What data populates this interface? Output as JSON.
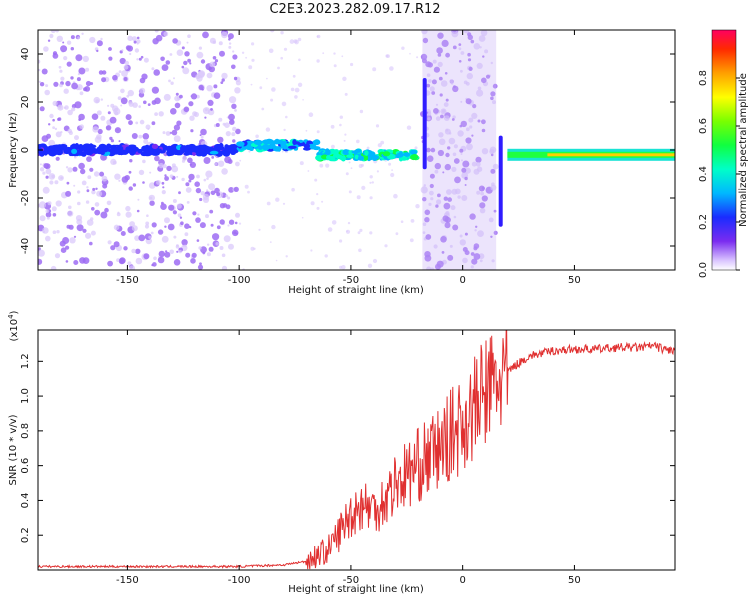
{
  "title": "C2E3.2023.282.09.17.R12",
  "colors": {
    "snr_line": "#e03030",
    "axis": "#000000",
    "signal_purple": "#7a2cf0",
    "noise_purple": "#b58cf5"
  },
  "chart_data": [
    {
      "type": "heatmap",
      "xlabel": "Height of straight line (km)",
      "ylabel": "Frequency (Hz)",
      "xlim": [
        -190,
        95
      ],
      "ylim": [
        -50,
        50
      ],
      "xticks": [
        -150,
        -100,
        -50,
        0,
        50
      ],
      "yticks": [
        -40,
        -20,
        0,
        20,
        40
      ],
      "colorbar": {
        "label": "Normalized spectral amplitude",
        "range": [
          0,
          1
        ],
        "ticks": [
          "0.0",
          "0.2",
          "0.4",
          "0.6",
          "0.8"
        ],
        "colormap": "rainbow"
      },
      "features": [
        {
          "x_range": [
            -190,
            -100
          ],
          "signal_freq": 0,
          "amplitude": 0.25,
          "noise": "dense"
        },
        {
          "x_range": [
            -100,
            -65
          ],
          "signal_freq": 2,
          "amplitude": 0.4,
          "noise": "sparse"
        },
        {
          "x_range": [
            -65,
            -20
          ],
          "signal_freq": -2,
          "amplitude": 0.55,
          "noise": "sparse"
        },
        {
          "x_range": [
            -18,
            15
          ],
          "signal_freq": null,
          "amplitude": 0.15,
          "noise": "dense"
        },
        {
          "x_range": [
            20,
            95
          ],
          "signal_freq": -2,
          "amplitude": 0.75,
          "noise": "none"
        }
      ]
    },
    {
      "type": "line",
      "xlabel": "Height of straight line (km)",
      "ylabel": "SNR (10 * v/v)",
      "y_multiplier": "(x10",
      "y_multiplier_exp": "4",
      "y_multiplier_close": ")",
      "xlim": [
        -190,
        95
      ],
      "ylim": [
        0,
        1.38
      ],
      "xticks": [
        -150,
        -100,
        -50,
        0,
        50
      ],
      "yticks": [
        0.2,
        0.4,
        0.6,
        0.8,
        1.0,
        1.2
      ],
      "ytick_labels": [
        "0.2",
        "0.4",
        "0.6",
        "0.8",
        "1.0",
        "1.2"
      ],
      "series": [
        {
          "x": [
            -190,
            -150,
            -100,
            -80,
            -70,
            -60,
            -55,
            -50,
            -45,
            -40,
            -35,
            -30,
            -25,
            -20,
            -15,
            -10,
            -5,
            0,
            5,
            10,
            15,
            20,
            25,
            30,
            40,
            50,
            60,
            70,
            80,
            85,
            90,
            95
          ],
          "y": [
            0.02,
            0.02,
            0.02,
            0.03,
            0.05,
            0.12,
            0.22,
            0.32,
            0.38,
            0.35,
            0.4,
            0.5,
            0.55,
            0.6,
            0.65,
            0.7,
            0.78,
            0.84,
            0.92,
            1.02,
            1.08,
            1.14,
            1.19,
            1.23,
            1.26,
            1.27,
            1.27,
            1.28,
            1.28,
            1.29,
            1.27,
            1.26
          ]
        }
      ]
    }
  ]
}
